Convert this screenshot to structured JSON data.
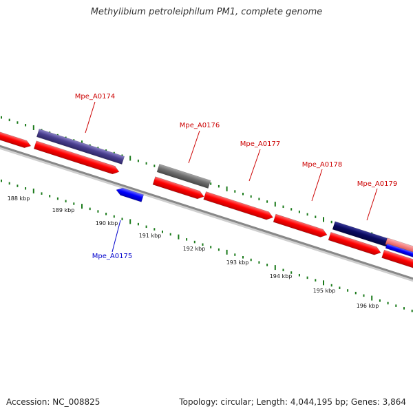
{
  "title": "Methylibium petroleiphilum PM1, complete genome",
  "footer": {
    "accession": "Accession: NC_008825",
    "stats": "Topology: circular; Length: 4,044,195 bp; Genes: 3,864"
  },
  "colors": {
    "gene_red": "#ff0000",
    "gene_purple": "#4a3f8f",
    "gene_gray": "#6e6e6e",
    "gene_navy": "#0a0a60",
    "gene_blue": "#0000ff",
    "tick_green": "#1a7a1a",
    "backbone": "#888888"
  },
  "scale_labels": [
    "188 kbp",
    "189 kbp",
    "190 kbp",
    "191 kbp",
    "192 kbp",
    "193 kbp",
    "194 kbp",
    "195 kbp",
    "196 kbp"
  ],
  "gene_labels": [
    {
      "text": "Mpe_A0174",
      "color": "#cc0000"
    },
    {
      "text": "Mpe_A0175",
      "color": "#0000cc"
    },
    {
      "text": "Mpe_A0176",
      "color": "#cc0000"
    },
    {
      "text": "Mpe_A0177",
      "color": "#cc0000"
    },
    {
      "text": "Mpe_A0178",
      "color": "#cc0000"
    },
    {
      "text": "Mpe_A0179",
      "color": "#cc0000"
    }
  ]
}
